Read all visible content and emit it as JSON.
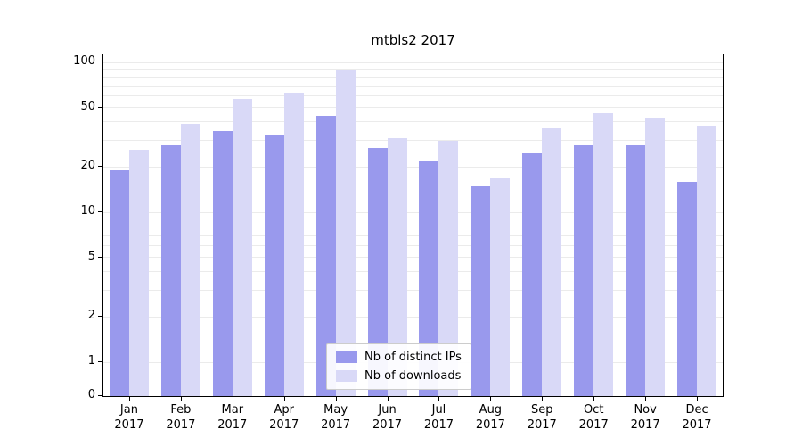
{
  "chart_data": {
    "type": "bar",
    "title": "mtbls2 2017",
    "xlabel": "",
    "ylabel": "",
    "yscale": "symlog",
    "yticks": [
      0,
      1,
      2,
      5,
      10,
      20,
      50,
      100
    ],
    "ylim": [
      0,
      110
    ],
    "grid": "horizontal-minor-log",
    "legend_position": "lower-center-inside",
    "categories": [
      "Jan\n2017",
      "Feb\n2017",
      "Mar\n2017",
      "Apr\n2017",
      "May\n2017",
      "Jun\n2017",
      "Jul\n2017",
      "Aug\n2017",
      "Sep\n2017",
      "Oct\n2017",
      "Nov\n2017",
      "Dec\n2017"
    ],
    "series": [
      {
        "name": "Nb of distinct IPs",
        "color": "#9999ed",
        "values": [
          19,
          28,
          35,
          33,
          44,
          27,
          22,
          15,
          25,
          28,
          28,
          16
        ]
      },
      {
        "name": "Nb of downloads",
        "color": "#d9d9f7",
        "values": [
          26,
          39,
          57,
          63,
          88,
          31,
          30,
          17,
          37,
          46,
          43,
          38
        ]
      }
    ]
  }
}
